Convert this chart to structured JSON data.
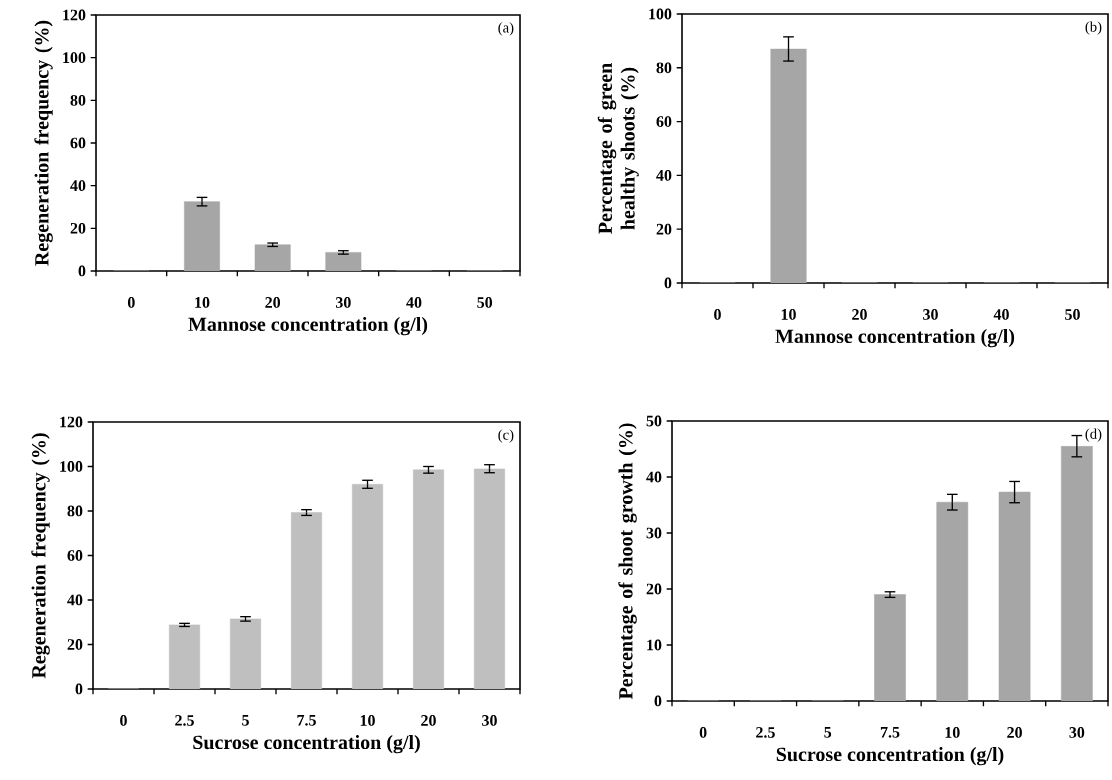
{
  "chart_data": [
    {
      "type": "bar",
      "categories": [
        "0",
        "10",
        "20",
        "30",
        "40",
        "50"
      ],
      "values": [
        0,
        32.5,
        12.3,
        8.7,
        0,
        0
      ],
      "errors": [
        null,
        2,
        0.8,
        0.8,
        null,
        null
      ],
      "color": "#a6a6a6",
      "xlabel": "Mannose concentration (g/l)",
      "ylabel": "Regeneration frequency (%)",
      "ylim": [
        0,
        120
      ],
      "yticks": [
        0,
        20,
        40,
        60,
        80,
        100,
        120
      ],
      "annotations": [
        "(a)"
      ]
    },
    {
      "type": "bar",
      "categories": [
        "0",
        "10",
        "20",
        "30",
        "40",
        "50"
      ],
      "values": [
        0,
        87,
        0,
        0,
        0,
        0
      ],
      "errors": [
        null,
        4.5,
        null,
        null,
        null,
        null
      ],
      "color": "#a6a6a6",
      "xlabel": "Mannose concentration (g/l)",
      "ylabel": "Percentage of green healthy shoots (%)",
      "ylim": [
        0,
        100
      ],
      "yticks": [
        0,
        20,
        40,
        60,
        80,
        100
      ],
      "annotations": [
        "(b)"
      ]
    },
    {
      "type": "bar",
      "categories": [
        "0",
        "2.5",
        "5",
        "7.5",
        "10",
        "20",
        "30"
      ],
      "values": [
        0,
        28.8,
        31.5,
        79.3,
        92,
        98.5,
        99
      ],
      "errors": [
        null,
        0.7,
        1,
        1.3,
        1.8,
        1.5,
        1.8
      ],
      "color": "#bfbfbf",
      "xlabel": "Sucrose concentration (g/l)",
      "ylabel": "Regeneration frequency (%)",
      "ylim": [
        0,
        120
      ],
      "yticks": [
        0,
        20,
        40,
        60,
        80,
        100,
        120
      ],
      "annotations": [
        "(c)"
      ]
    },
    {
      "type": "bar",
      "categories": [
        "0",
        "2.5",
        "5",
        "7.5",
        "10",
        "20",
        "30"
      ],
      "values": [
        0,
        0,
        0,
        19,
        35.5,
        37.3,
        45.5
      ],
      "errors": [
        null,
        null,
        null,
        0.5,
        1.4,
        1.9,
        1.9
      ],
      "color": "#a6a6a6",
      "xlabel": "Sucrose concentration (g/l)",
      "ylabel": "Percentage of shoot growth (%)",
      "ylim": [
        0,
        50
      ],
      "yticks": [
        0,
        10,
        20,
        30,
        40,
        50
      ],
      "annotations": [
        "(d)"
      ]
    }
  ]
}
